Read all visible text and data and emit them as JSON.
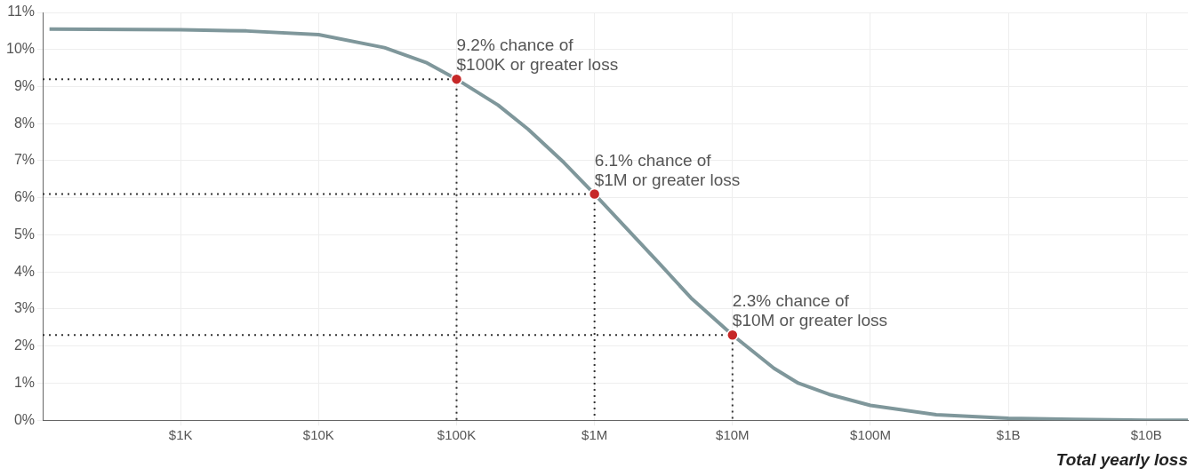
{
  "chart_data": {
    "type": "line",
    "xlabel": "Total yearly loss",
    "log": "x",
    "grid": true,
    "legend": false,
    "xlim": [
      100,
      20000000000
    ],
    "ylim": [
      0,
      11
    ],
    "xticks": [
      {
        "value": 1000,
        "label": "$1K"
      },
      {
        "value": 10000,
        "label": "$10K"
      },
      {
        "value": 100000,
        "label": "$100K"
      },
      {
        "value": 1000000,
        "label": "$1M"
      },
      {
        "value": 10000000,
        "label": "$10M"
      },
      {
        "value": 100000000,
        "label": "$100M"
      },
      {
        "value": 1000000000,
        "label": "$1B"
      },
      {
        "value": 10000000000,
        "label": "$10B"
      }
    ],
    "yticks": [
      {
        "value": 0,
        "label": "0%"
      },
      {
        "value": 1,
        "label": "1%"
      },
      {
        "value": 2,
        "label": "2%"
      },
      {
        "value": 3,
        "label": "3%"
      },
      {
        "value": 4,
        "label": "4%"
      },
      {
        "value": 5,
        "label": "5%"
      },
      {
        "value": 6,
        "label": "6%"
      },
      {
        "value": 7,
        "label": "7%"
      },
      {
        "value": 8,
        "label": "8%"
      },
      {
        "value": 9,
        "label": "9%"
      },
      {
        "value": 10,
        "label": "10%"
      },
      {
        "value": 11,
        "label": "11%"
      }
    ],
    "series": [
      {
        "type": "line",
        "color": "#7f979b",
        "marker": "none",
        "x": [
          112,
          1000,
          3000,
          10000,
          30000,
          60000,
          100000,
          200000,
          330000,
          600000,
          1000000,
          2000000,
          3000000,
          5000000,
          10000000,
          20000000,
          30000000,
          50000000,
          100000000,
          300000000,
          1000000000,
          3000000000,
          10000000000,
          20000000000
        ],
        "values": [
          10.55,
          10.53,
          10.5,
          10.4,
          10.05,
          9.65,
          9.2,
          8.5,
          7.85,
          6.95,
          6.1,
          4.9,
          4.2,
          3.3,
          2.3,
          1.4,
          1.0,
          0.7,
          0.4,
          0.15,
          0.05,
          0.02,
          0.0,
          0.0
        ]
      },
      {
        "type": "line",
        "color": "#333333",
        "marker": "none",
        "line_style": "dotted",
        "x": [
          100,
          100000,
          100000
        ],
        "values": [
          9.2,
          9.2,
          0
        ]
      },
      {
        "type": "line",
        "color": "#333333",
        "marker": "none",
        "line_style": "dotted",
        "x": [
          100,
          1000000,
          1000000
        ],
        "values": [
          6.1,
          6.1,
          0
        ]
      },
      {
        "type": "line",
        "color": "#333333",
        "marker": "none",
        "line_style": "dotted",
        "x": [
          100,
          10000000,
          10000000
        ],
        "values": [
          2.3,
          2.3,
          0
        ]
      },
      {
        "type": "scatter",
        "color": "#c62828",
        "marker": "circle",
        "x": [
          100000,
          1000000,
          10000000
        ],
        "values": [
          9.2,
          6.1,
          2.3
        ]
      }
    ],
    "annotations": [
      {
        "text": "9.2% chance of\n$100K or greater loss",
        "x": 100000,
        "y": 9.2
      },
      {
        "text": "6.1% chance of\n$1M or greater loss",
        "x": 1000000,
        "y": 6.1
      },
      {
        "text": "2.3% chance of\n$10M or greater loss",
        "x": 10000000,
        "y": 2.3
      }
    ]
  }
}
